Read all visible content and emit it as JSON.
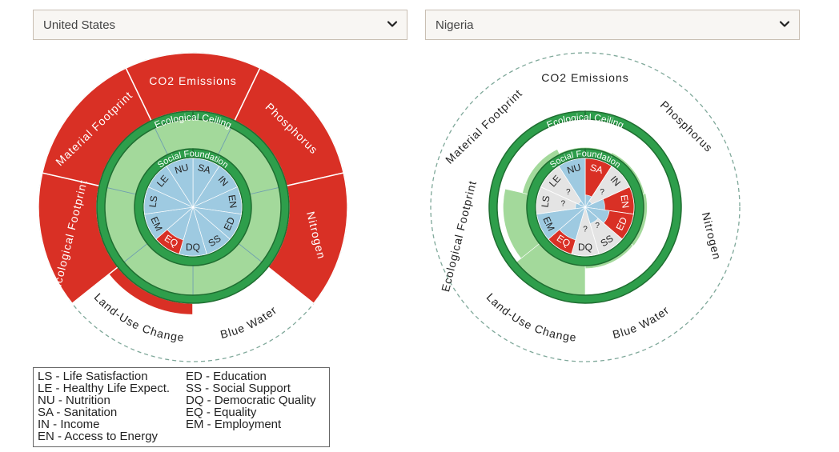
{
  "selectors": {
    "left": {
      "value": "United States",
      "icon": "chevron-down-icon"
    },
    "right": {
      "value": "Nigeria",
      "icon": "chevron-down-icon"
    }
  },
  "chart_data": [
    {
      "type": "doughnut",
      "country": "United States",
      "ring_labels": {
        "ceiling": "Ecological Ceiling",
        "foundation": "Social Foundation"
      },
      "ecological": [
        {
          "code": "co2",
          "label": "CO2 Emissions",
          "overshoot": 1.0
        },
        {
          "code": "phos",
          "label": "Phosphorus",
          "overshoot": 1.0
        },
        {
          "code": "nitro",
          "label": "Nitrogen",
          "overshoot": 1.0
        },
        {
          "code": "water",
          "label": "Blue Water",
          "overshoot": 0.0
        },
        {
          "code": "land",
          "label": "Land-Use Change",
          "overshoot": 0.2
        },
        {
          "code": "eco",
          "label": "Ecological Footprint",
          "overshoot": 1.0
        },
        {
          "code": "mat",
          "label": "Material Footprint",
          "overshoot": 1.0
        }
      ],
      "ecological_inner": [
        1,
        1,
        1,
        1,
        1,
        1,
        1
      ],
      "social": [
        {
          "code": "SA",
          "achieved": 1.0,
          "unknown": false
        },
        {
          "code": "IN",
          "achieved": 1.0,
          "unknown": false
        },
        {
          "code": "EN",
          "achieved": 1.0,
          "unknown": false
        },
        {
          "code": "ED",
          "achieved": 1.0,
          "unknown": false
        },
        {
          "code": "SS",
          "achieved": 1.0,
          "unknown": false
        },
        {
          "code": "DQ",
          "achieved": 1.0,
          "unknown": false
        },
        {
          "code": "EQ",
          "achieved": 0.7,
          "unknown": false
        },
        {
          "code": "EM",
          "achieved": 1.0,
          "unknown": false
        },
        {
          "code": "LS",
          "achieved": 1.0,
          "unknown": false
        },
        {
          "code": "LE",
          "achieved": 1.0,
          "unknown": false
        },
        {
          "code": "NU",
          "achieved": 1.0,
          "unknown": false
        }
      ]
    },
    {
      "type": "doughnut",
      "country": "Nigeria",
      "ring_labels": {
        "ceiling": "Ecological Ceiling",
        "foundation": "Social Foundation"
      },
      "ecological": [
        {
          "code": "co2",
          "label": "CO2 Emissions",
          "overshoot": 0.0
        },
        {
          "code": "phos",
          "label": "Phosphorus",
          "overshoot": 0.0
        },
        {
          "code": "nitro",
          "label": "Nitrogen",
          "overshoot": 0.0
        },
        {
          "code": "water",
          "label": "Blue Water",
          "overshoot": 0.0
        },
        {
          "code": "land",
          "label": "Land-Use Change",
          "overshoot": 0.0
        },
        {
          "code": "eco",
          "label": "Ecological Footprint",
          "overshoot": 0.0
        },
        {
          "code": "mat",
          "label": "Material Footprint",
          "overshoot": 0.0
        }
      ],
      "ecological_inner": [
        0.05,
        0.08,
        0.12,
        0.1,
        1.0,
        0.8,
        0.2
      ],
      "social": [
        {
          "code": "SA",
          "achieved": 0.25,
          "unknown": false
        },
        {
          "code": "IN",
          "achieved": 0.15,
          "unknown": true
        },
        {
          "code": "EN",
          "achieved": 0.4,
          "unknown": false
        },
        {
          "code": "ED",
          "achieved": 0.5,
          "unknown": false
        },
        {
          "code": "SS",
          "achieved": 0.35,
          "unknown": true
        },
        {
          "code": "DQ",
          "achieved": 0.05,
          "unknown": true
        },
        {
          "code": "EQ",
          "achieved": 0.7,
          "unknown": false
        },
        {
          "code": "EM",
          "achieved": 1.0,
          "unknown": false
        },
        {
          "code": "LS",
          "achieved": 0.2,
          "unknown": true
        },
        {
          "code": "LE",
          "achieved": 0.15,
          "unknown": true
        },
        {
          "code": "NU",
          "achieved": 1.0,
          "unknown": false
        }
      ]
    }
  ],
  "legend": {
    "col1": [
      "LS - Life Satisfaction",
      "LE - Healthy Life Expect.",
      "NU - Nutrition",
      "SA - Sanitation",
      "IN - Income",
      "EN - Access to Energy"
    ],
    "col2": [
      "ED - Education",
      "SS - Social Support",
      "DQ - Democratic Quality",
      "EQ - Equality",
      "EM - Employment"
    ]
  },
  "colors": {
    "overshoot": "#d93025",
    "ring": "#2e9e4b",
    "ring_edge": "#1f6e31",
    "safe": "#a3d99b",
    "social_ok": "#9ecae1",
    "unknown": "#e4e4e4",
    "dashed": "#7fa89a"
  },
  "unknown_mark": "?"
}
